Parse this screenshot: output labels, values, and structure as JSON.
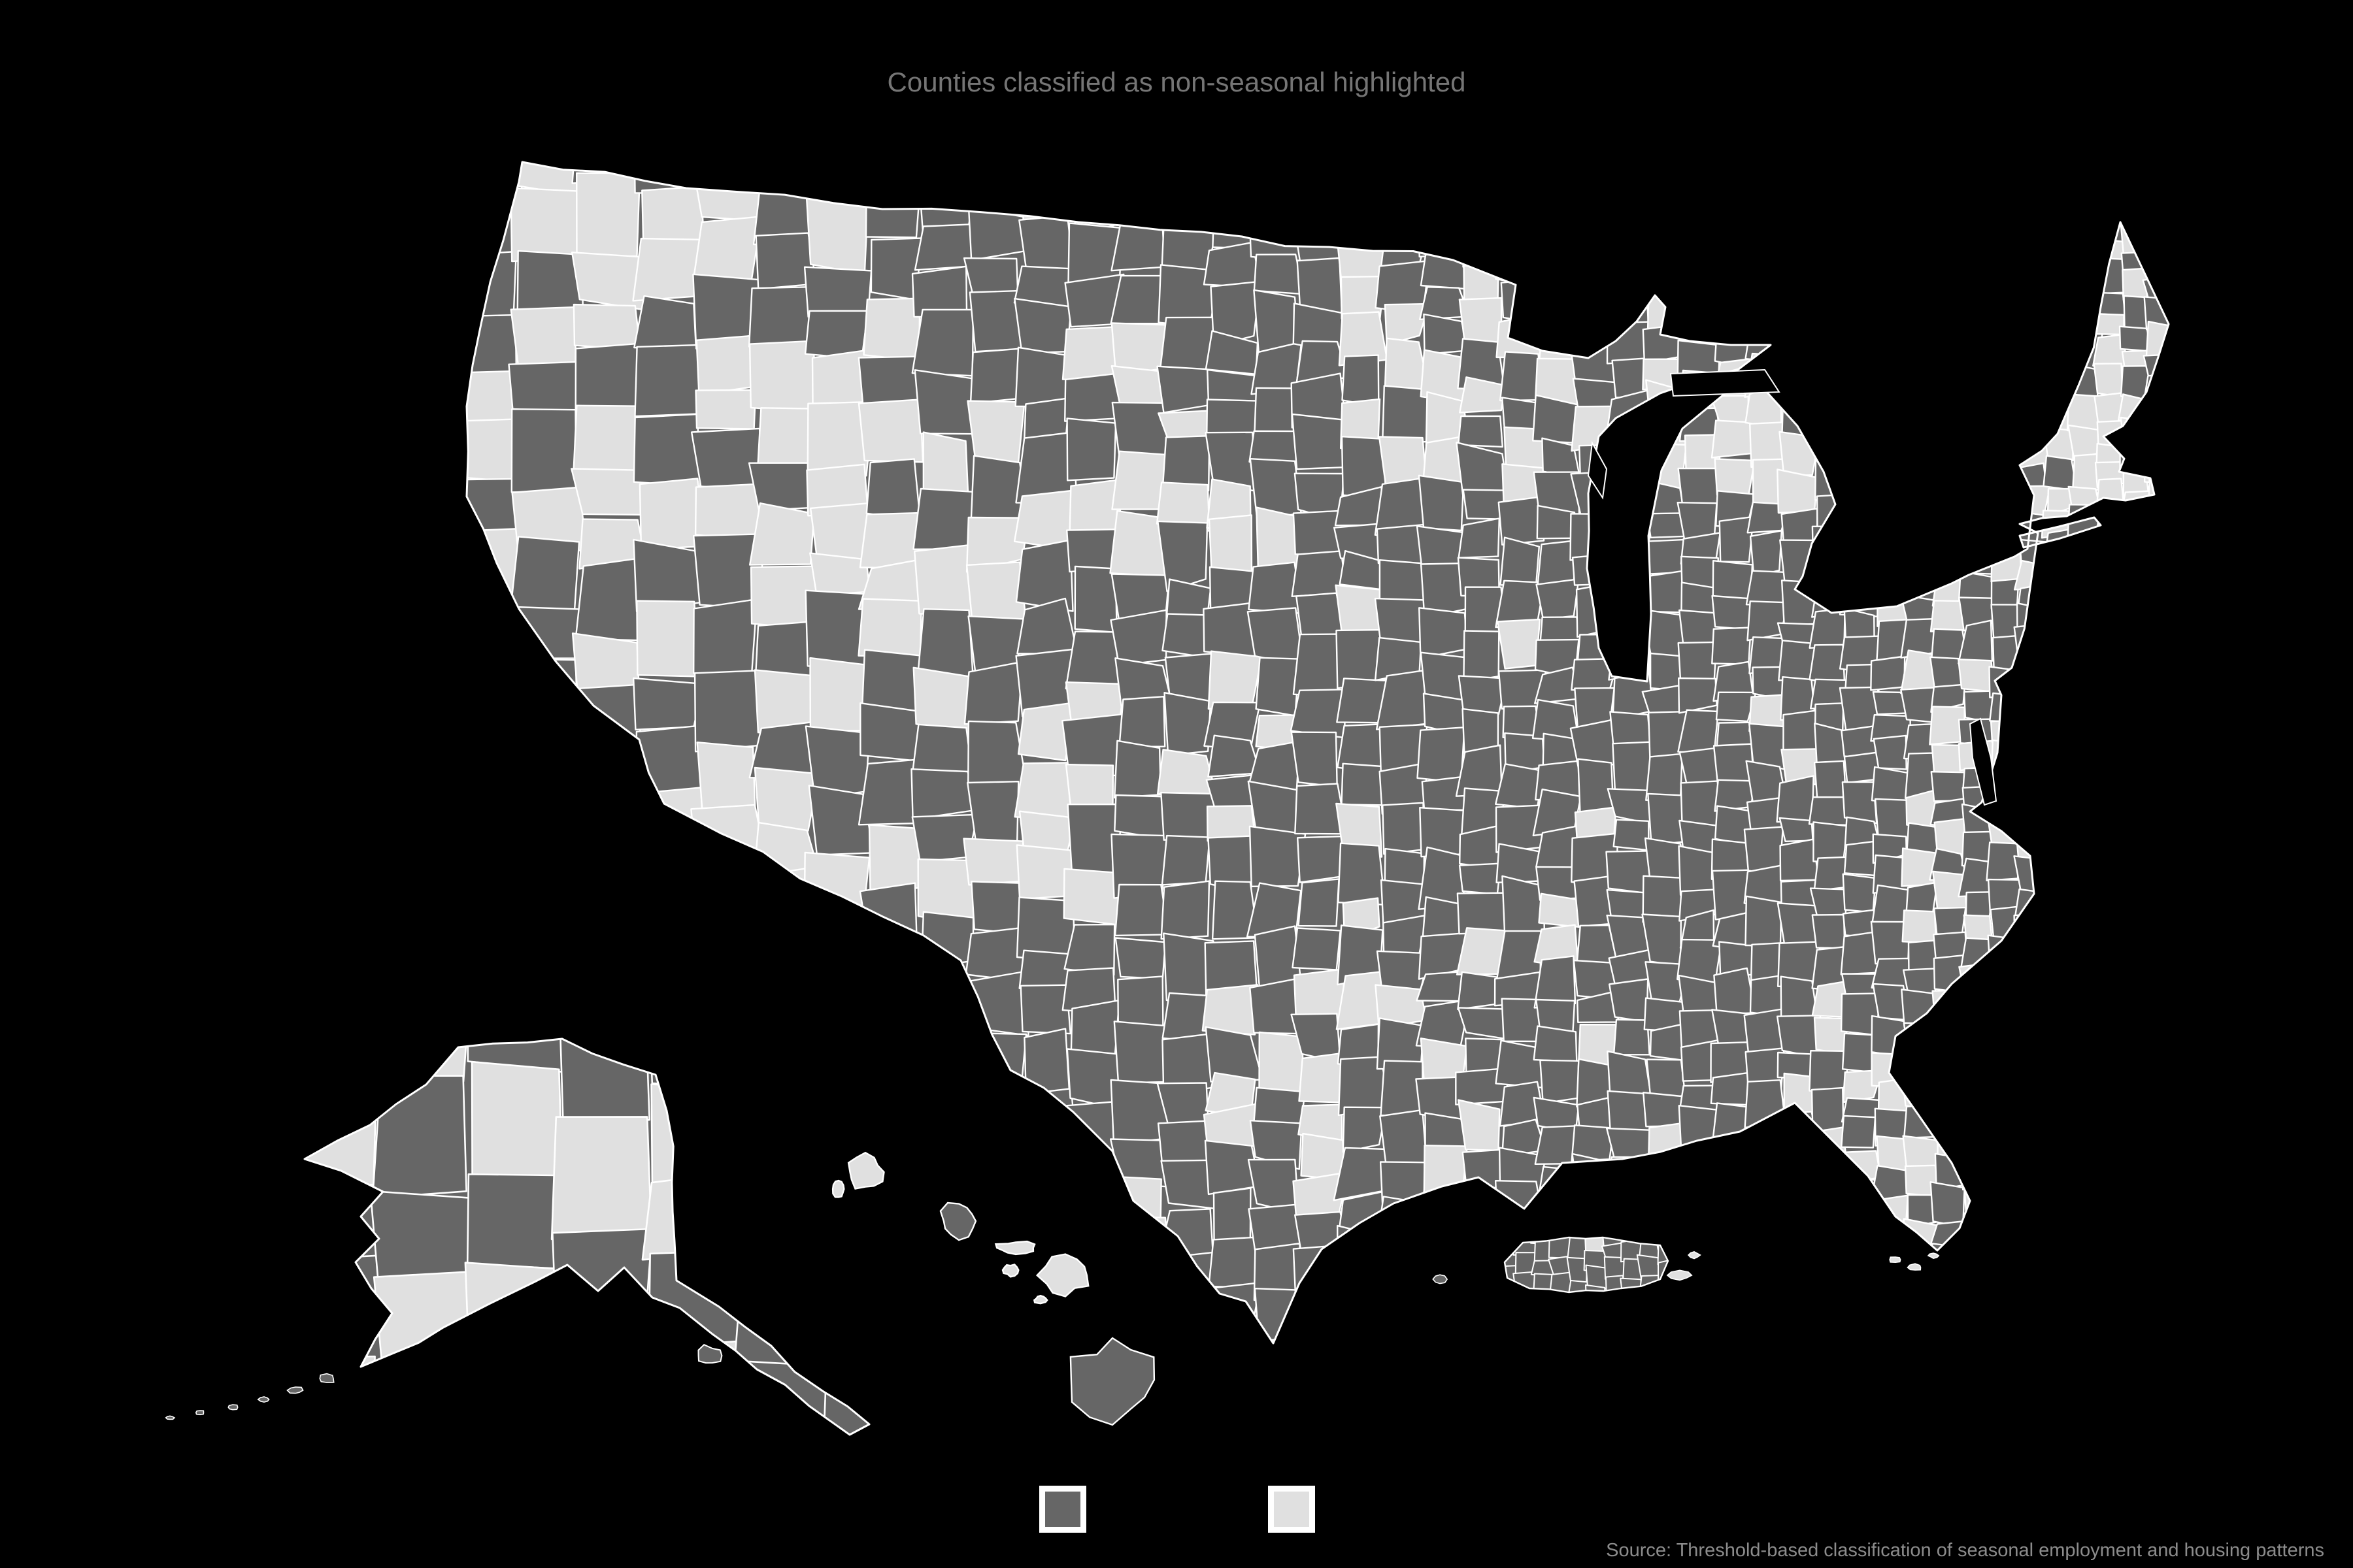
{
  "figure": {
    "title": "Counties classified as non-seasonal highlighted",
    "source_note": "Source: Threshold-based classification of seasonal employment and housing patterns"
  },
  "legend": {
    "swatches": [
      {
        "id": "class-dark",
        "color": "#666666",
        "frame": "#ffffff"
      },
      {
        "id": "class-light",
        "color": "#e0e0e0",
        "frame": "#ffffff"
      }
    ]
  },
  "colors": {
    "background": "#000000",
    "county_dark": "#666666",
    "county_light": "#e0e0e0",
    "county_border": "#ffffff",
    "water": "#000000",
    "title_text": "#757575",
    "source_text": "#8c8c8c"
  }
}
